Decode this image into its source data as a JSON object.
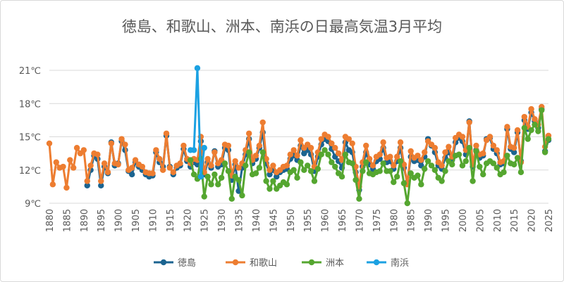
{
  "chart_data": {
    "type": "line",
    "title": "徳島、和歌山、洲本、南浜の日最高気温3月平均",
    "xlabel": "",
    "ylabel": "",
    "xlim": [
      1880,
      2025
    ],
    "ylim": [
      9,
      21
    ],
    "x_ticks": [
      "1880",
      "1885",
      "1890",
      "1895",
      "1900",
      "1905",
      "1910",
      "1915",
      "1920",
      "1925",
      "1930",
      "1935",
      "1940",
      "1945",
      "1950",
      "1955",
      "1960",
      "1965",
      "1970",
      "1975",
      "1980",
      "1985",
      "1990",
      "1995",
      "2000",
      "2005",
      "2010",
      "2015",
      "2020",
      "2025"
    ],
    "y_ticks": [
      "9℃",
      "12℃",
      "15℃",
      "18℃",
      "21℃"
    ],
    "grid": "horizontal",
    "legend": "bottom",
    "series": [
      {
        "name": "徳島",
        "color": "#1b6490",
        "start_year": 1891,
        "values": [
          10.6,
          12.0,
          13.3,
          13.0,
          10.6,
          12.3,
          11.7,
          14.5,
          12.4,
          12.6,
          14.6,
          13.8,
          11.9,
          11.6,
          12.7,
          12.3,
          12.0,
          11.6,
          11.4,
          11.5,
          13.6,
          12.7,
          12.3,
          15.1,
          12.3,
          11.6,
          12.2,
          12.4,
          13.9,
          12.8,
          12.3,
          12.7,
          12.5,
          14.6,
          11.6,
          12.7,
          12.2,
          13.7,
          12.3,
          12.5,
          14.0,
          13.8,
          11.1,
          12.5,
          10.1,
          12.2,
          13.4,
          14.8,
          12.6,
          13.0,
          14.0,
          15.4,
          12.6,
          11.6,
          12.0,
          11.4,
          11.8,
          12.0,
          12.1,
          13.0,
          13.3,
          12.9,
          14.2,
          13.5,
          13.8,
          13.4,
          11.9,
          13.2,
          14.3,
          14.8,
          14.6,
          13.9,
          13.2,
          12.8,
          12.2,
          14.5,
          13.8,
          13.6,
          11.8,
          10.2,
          12.3,
          13.6,
          12.5,
          12.1,
          12.8,
          13.0,
          14.0,
          12.7,
          12.8,
          12.1,
          12.8,
          14.0,
          12.2,
          10.9,
          13.2,
          12.8,
          12.9,
          12.4,
          13.2,
          14.8,
          14.2,
          13.6,
          12.4,
          12.1,
          13.1,
          13.6,
          12.9,
          14.5,
          14.9,
          14.6,
          13.4,
          16.4,
          12.3,
          13.8,
          13.1,
          13.3,
          14.8,
          14.9,
          13.9,
          13.5,
          12.5,
          12.6,
          15.7,
          13.9,
          13.6,
          15.4,
          12.8,
          16.5,
          15.7,
          17.2,
          16.4,
          15.8,
          17.5,
          13.7,
          14.7
        ]
      },
      {
        "name": "和歌山",
        "color": "#ed7d31",
        "start_year": 1880,
        "values": [
          14.4,
          10.7,
          12.7,
          12.2,
          12.3,
          10.4,
          12.9,
          12.2,
          14.0,
          13.5,
          13.8,
          11.0,
          12.4,
          13.5,
          13.4,
          11.0,
          12.6,
          11.8,
          14.4,
          12.6,
          12.5,
          14.8,
          14.3,
          12.0,
          12.2,
          12.9,
          12.5,
          12.3,
          11.8,
          11.7,
          11.7,
          13.8,
          13.0,
          12.0,
          15.3,
          12.2,
          11.8,
          12.4,
          12.6,
          14.2,
          13.0,
          12.6,
          13.0,
          12.9,
          15.0,
          11.8,
          13.0,
          12.4,
          13.6,
          12.6,
          12.9,
          14.3,
          14.2,
          11.5,
          12.8,
          12.2,
          12.6,
          13.8,
          15.3,
          12.9,
          13.3,
          14.2,
          16.3,
          13.0,
          12.0,
          12.4,
          11.8,
          12.0,
          12.3,
          12.4,
          13.4,
          13.8,
          13.3,
          14.7,
          14.0,
          14.3,
          14.0,
          12.3,
          13.6,
          14.8,
          15.2,
          15.0,
          14.4,
          14.0,
          13.5,
          12.9,
          15.0,
          14.8,
          14.4,
          12.3,
          10.5,
          12.7,
          14.2,
          13.0,
          12.4,
          13.2,
          13.4,
          14.5,
          13.1,
          13.2,
          12.4,
          13.2,
          14.5,
          12.5,
          10.7,
          13.7,
          13.1,
          13.3,
          12.9,
          13.6,
          14.6,
          14.3,
          14.0,
          12.7,
          12.4,
          13.6,
          14.1,
          13.2,
          14.9,
          15.2,
          15.0,
          13.8,
          16.3,
          12.5,
          14.2,
          13.4,
          13.5,
          14.7,
          15.0,
          14.2,
          13.8,
          12.7,
          12.8,
          15.9,
          14.1,
          14.0,
          15.6,
          12.7,
          16.8,
          15.9,
          17.5,
          16.6,
          16.1,
          17.7,
          14.1,
          15.1
        ]
      },
      {
        "name": "洲本",
        "color": "#55a630",
        "start_year": 1921,
        "values": [
          12.9,
          11.6,
          11.2,
          13.0,
          9.6,
          11.4,
          10.7,
          11.6,
          10.7,
          11.3,
          12.6,
          11.9,
          9.4,
          11.4,
          11.1,
          9.7,
          12.4,
          13.6,
          11.6,
          11.7,
          12.2,
          13.6,
          11.0,
          10.3,
          11.0,
          10.3,
          10.6,
          10.9,
          10.7,
          11.8,
          12.0,
          11.3,
          12.7,
          12.0,
          12.4,
          11.9,
          11.0,
          12.1,
          13.4,
          13.8,
          13.4,
          12.7,
          12.3,
          11.7,
          11.4,
          13.4,
          12.7,
          12.6,
          11.1,
          9.4,
          11.9,
          12.7,
          11.7,
          11.6,
          11.8,
          11.9,
          12.6,
          11.9,
          11.9,
          10.9,
          11.4,
          12.8,
          10.8,
          9.0,
          11.7,
          11.3,
          11.5,
          10.7,
          12.1,
          12.8,
          12.4,
          12.0,
          11.3,
          11.0,
          11.9,
          12.8,
          12.5,
          13.3,
          13.4,
          12.4,
          12.8,
          14.0,
          11.0,
          13.7,
          12.3,
          11.6,
          12.6,
          12.8,
          12.6,
          12.2,
          11.6,
          11.8,
          13.3,
          12.6,
          12.5,
          13.1,
          11.8,
          15.8,
          14.8,
          15.6,
          16.1,
          15.5,
          17.4,
          13.6,
          14.8
        ]
      },
      {
        "name": "南浜",
        "color": "#1ba1e2",
        "start_year": 1921,
        "values": [
          13.8,
          13.8,
          21.2,
          11.4,
          14.0
        ]
      }
    ]
  }
}
